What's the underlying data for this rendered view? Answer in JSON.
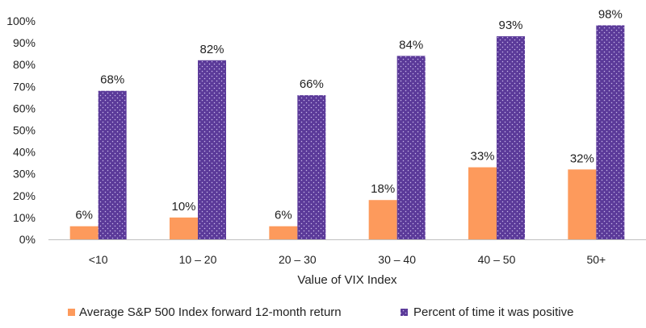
{
  "chart_data": {
    "type": "bar",
    "title": "",
    "xlabel": "Value of VIX Index",
    "ylabel": "",
    "ylim": [
      0,
      100
    ],
    "yticks": [
      "0%",
      "10%",
      "20%",
      "30%",
      "40%",
      "50%",
      "60%",
      "70%",
      "80%",
      "90%",
      "100%"
    ],
    "categories": [
      "<10",
      "10 – 20",
      "20 – 30",
      "30 – 40",
      "40 – 50",
      "50+"
    ],
    "series": [
      {
        "name": "Average S&P 500 Index forward 12-month return",
        "values": [
          6,
          10,
          6,
          18,
          33,
          32
        ],
        "labels": [
          "6%",
          "10%",
          "6%",
          "18%",
          "33%",
          "32%"
        ],
        "color": "#FD9A5C"
      },
      {
        "name": "Percent of time it was positive",
        "values": [
          68,
          82,
          66,
          84,
          93,
          98
        ],
        "labels": [
          "68%",
          "82%",
          "66%",
          "84%",
          "93%",
          "98%"
        ],
        "color": "#5B3A99",
        "pattern": "dotted"
      }
    ],
    "grid": false,
    "legend_position": "bottom"
  }
}
